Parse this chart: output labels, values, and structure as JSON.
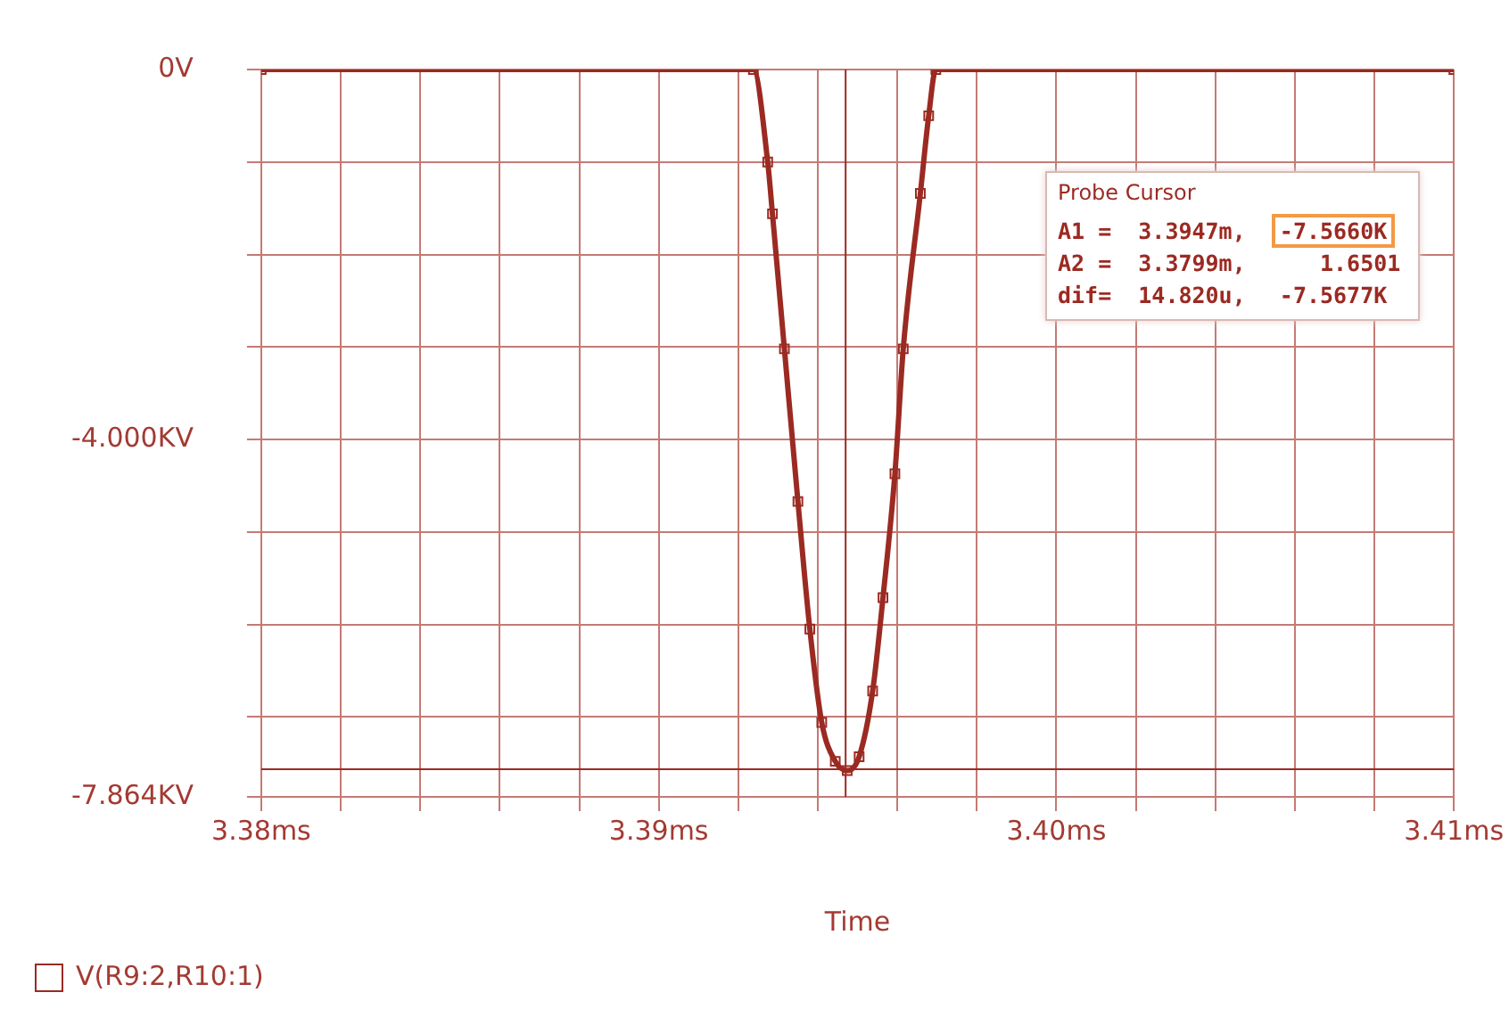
{
  "chart_data": {
    "type": "line",
    "xlabel": "Time",
    "x": [
      3.38,
      3.39238,
      3.39274,
      3.39286,
      3.39316,
      3.3935,
      3.3938,
      3.3941,
      3.39444,
      3.39474,
      3.39504,
      3.39538,
      3.39564,
      3.39594,
      3.39615,
      3.39658,
      3.39679,
      3.39697,
      3.41
    ],
    "series": [
      {
        "name": "V(R9:2,R10:1)",
        "color": "#9b2a22",
        "values": [
          0,
          0,
          -1.0,
          -1.56,
          -3.02,
          -4.67,
          -6.05,
          -7.06,
          -7.48,
          -7.58,
          -7.43,
          -6.72,
          -5.71,
          -4.37,
          -3.02,
          -1.34,
          -0.5,
          0,
          0
        ]
      }
    ],
    "xlim": [
      3.38,
      3.41
    ],
    "xticks": [
      {
        "value": 3.38,
        "label": "3.38ms"
      },
      {
        "value": 3.382,
        "label": null
      },
      {
        "value": 3.384,
        "label": null
      },
      {
        "value": 3.386,
        "label": null
      },
      {
        "value": 3.388,
        "label": null
      },
      {
        "value": 3.39,
        "label": "3.39ms"
      },
      {
        "value": 3.392,
        "label": null
      },
      {
        "value": 3.394,
        "label": null
      },
      {
        "value": 3.396,
        "label": null
      },
      {
        "value": 3.398,
        "label": null
      },
      {
        "value": 3.4,
        "label": "3.40ms"
      },
      {
        "value": 3.402,
        "label": null
      },
      {
        "value": 3.404,
        "label": null
      },
      {
        "value": 3.406,
        "label": null
      },
      {
        "value": 3.408,
        "label": null
      },
      {
        "value": 3.41,
        "label": "3.41ms"
      }
    ],
    "ylim": [
      -7.864,
      0
    ],
    "yticks": [
      {
        "value": 0,
        "label": "0V"
      },
      {
        "value": -1,
        "label": null
      },
      {
        "value": -2,
        "label": null
      },
      {
        "value": -3,
        "label": null
      },
      {
        "value": -4,
        "label": "-4.000KV"
      },
      {
        "value": -5,
        "label": null
      },
      {
        "value": -6,
        "label": null
      },
      {
        "value": -7,
        "label": null
      },
      {
        "value": -7.864,
        "label": "-7.864KV"
      }
    ],
    "ref_lines": [
      {
        "axis": "x",
        "value": 3.3947,
        "color": "#9b2a22"
      },
      {
        "axis": "y",
        "value": -7.566,
        "color": "#9b2a22"
      }
    ],
    "annotations": [
      "Probe Cursor",
      "A1 =  3.3947m,  -7.5660K",
      "A2 =  3.3799m,     1.6501",
      "dif=  14.820u,  -7.5677K"
    ],
    "grid": true,
    "legend": "bottom left",
    "marker": "square",
    "line_style": "solid"
  }
}
